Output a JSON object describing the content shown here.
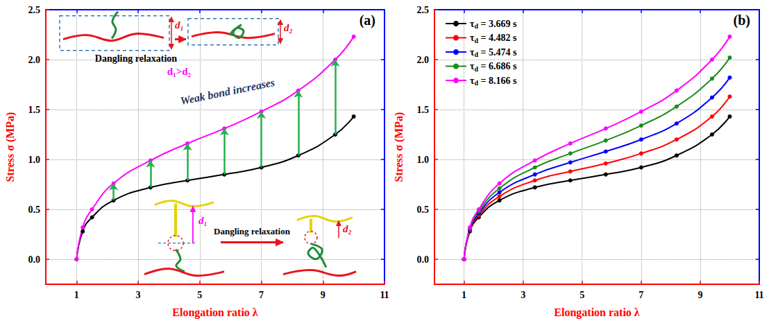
{
  "chart_data": [
    {
      "type": "line",
      "title": "(a)",
      "x_label": "Elongation ratio λ",
      "y_label": "Stress σ (MPa)",
      "x": [
        1,
        1.2,
        1.5,
        2.2,
        3.4,
        4.6,
        5.8,
        7,
        8.2,
        9.4,
        10
      ],
      "series": [
        {
          "color": "#000000",
          "values": [
            0,
            0.28,
            0.42,
            0.59,
            0.72,
            0.79,
            0.85,
            0.92,
            1.04,
            1.25,
            1.43
          ]
        },
        {
          "color": "#ff00ff",
          "values": [
            0,
            0.32,
            0.5,
            0.76,
            0.99,
            1.16,
            1.31,
            1.48,
            1.69,
            2,
            2.23
          ]
        }
      ],
      "arrows_x": [
        2.2,
        3.4,
        4.6,
        5.8,
        7,
        8.2,
        9.4
      ],
      "annotations": [
        "d₁",
        "d₂",
        "Dangling relaxation",
        "d₁>d₂",
        "Weak bond increases",
        "d₁",
        "Dangling relaxation",
        "d₂"
      ],
      "xlim": [
        0,
        11
      ],
      "xticks": [
        1,
        3,
        5,
        7,
        9,
        11
      ],
      "ylim": [
        -0.25,
        2.5
      ],
      "yticks": [
        {
          "value": 0,
          "label": "0.0"
        },
        0.5,
        {
          "value": 1,
          "label": "1.0"
        },
        1.5,
        {
          "value": 2,
          "label": "2.0"
        },
        2.5
      ],
      "grid": true,
      "marker": "circle"
    },
    {
      "type": "line",
      "title": "(b)",
      "x_label": "Elongation ratio λ",
      "y_label": "Stress σ (MPa)",
      "x": [
        1,
        1.2,
        1.5,
        2.2,
        3.4,
        4.6,
        5.8,
        7,
        8.2,
        9.4,
        10
      ],
      "series": [
        {
          "name": "τd = 3.669 s",
          "color": "#000000",
          "values": [
            0,
            0.28,
            0.42,
            0.59,
            0.72,
            0.79,
            0.85,
            0.92,
            1.04,
            1.25,
            1.43
          ]
        },
        {
          "name": "τd = 4.482 s",
          "color": "#ff0000",
          "values": [
            0,
            0.29,
            0.44,
            0.63,
            0.79,
            0.88,
            0.96,
            1.06,
            1.2,
            1.43,
            1.63
          ]
        },
        {
          "name": "τd = 5.474 s",
          "color": "#0000ff",
          "values": [
            0,
            0.3,
            0.46,
            0.67,
            0.85,
            0.97,
            1.08,
            1.2,
            1.36,
            1.62,
            1.82
          ]
        },
        {
          "name": "τd = 6.686 s",
          "color": "#1a8c1a",
          "values": [
            0,
            0.31,
            0.48,
            0.71,
            0.92,
            1.06,
            1.19,
            1.34,
            1.53,
            1.81,
            2.02
          ]
        },
        {
          "name": "τd = 8.166 s",
          "color": "#ff00ff",
          "values": [
            0,
            0.32,
            0.5,
            0.76,
            0.99,
            1.16,
            1.31,
            1.48,
            1.69,
            2,
            2.23
          ]
        }
      ],
      "xlim": [
        0,
        11
      ],
      "xticks": [
        1,
        3,
        5,
        7,
        9,
        11
      ],
      "ylim": [
        -0.25,
        2.5
      ],
      "yticks": [
        {
          "value": 0,
          "label": "0.0"
        },
        0.5,
        {
          "value": 1,
          "label": "1.0"
        },
        1.5,
        {
          "value": 2,
          "label": "2.0"
        },
        2.5
      ],
      "grid": true,
      "marker": "circle",
      "legend": "upper left"
    }
  ]
}
